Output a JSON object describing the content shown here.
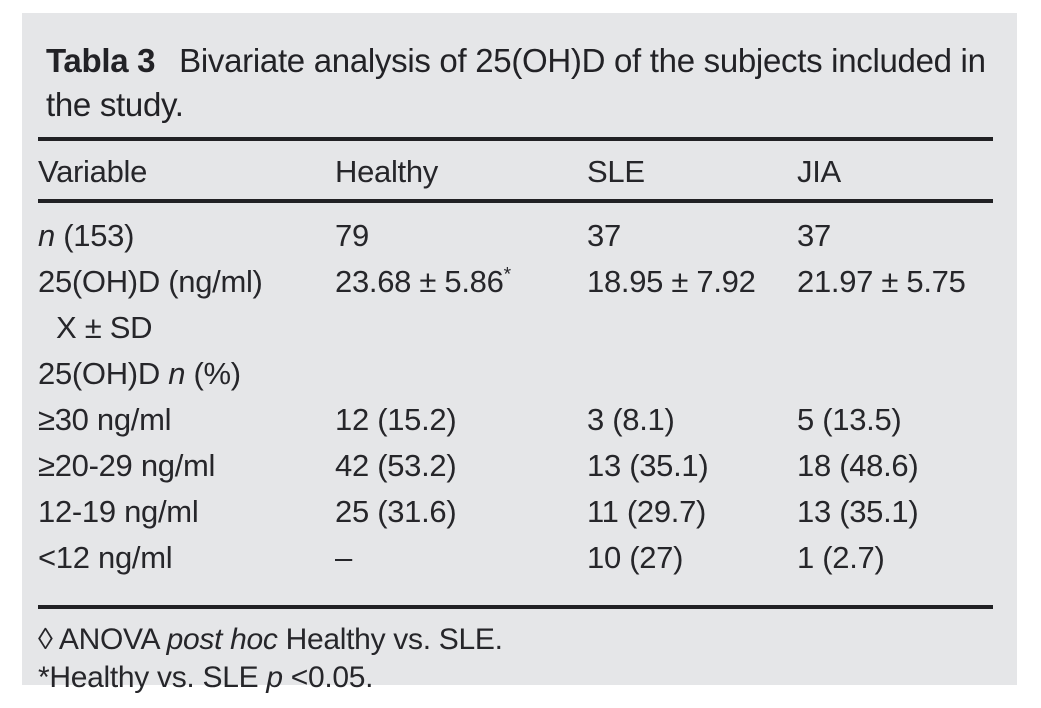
{
  "title": {
    "label": "Tabla 3",
    "text": "Bivariate analysis of 25(OH)D of the subjects included in the study."
  },
  "colors": {
    "panel_bg": "#e5e6e8",
    "text": "#26262a",
    "rule": "#212124"
  },
  "chart_data": {
    "type": "table",
    "title": "Tabla 3 Bivariate analysis of 25(OH)D of the subjects included in the study.",
    "columns": [
      "Variable",
      "Healthy",
      "SLE",
      "JIA"
    ],
    "rows": [
      {
        "cells": [
          [
            {
              "t": "n",
              "italic": true
            },
            {
              "t": " (153)"
            }
          ],
          "79",
          "37",
          "37"
        ]
      },
      {
        "cells": [
          "25(OH)D (ng/ml)",
          [
            {
              "t": "23.68 ± 5.86"
            },
            {
              "t": "*",
              "sup": true
            }
          ],
          "18.95 ± 7.92",
          "21.97 ± 5.75"
        ]
      },
      {
        "cells": [
          "X ± SD",
          "",
          "",
          ""
        ],
        "indent": true
      },
      {
        "cells": [
          [
            {
              "t": "25(OH)D "
            },
            {
              "t": "n",
              "italic": true
            },
            {
              "t": " (%)"
            }
          ],
          "",
          "",
          ""
        ]
      },
      {
        "cells": [
          "≥30 ng/ml",
          "12 (15.2)",
          "3 (8.1)",
          "5 (13.5)"
        ]
      },
      {
        "cells": [
          "≥20-29 ng/ml",
          "42 (53.2)",
          "13 (35.1)",
          "18 (48.6)"
        ]
      },
      {
        "cells": [
          "12-19 ng/ml",
          "25 (31.6)",
          "11 (29.7)",
          "13 (35.1)"
        ]
      },
      {
        "cells": [
          "<12 ng/ml",
          "–",
          "10 (27)",
          "1 (2.7)"
        ]
      }
    ],
    "footnotes": [
      [
        {
          "t": "◊ ANOVA "
        },
        {
          "t": "post hoc",
          "italic": true
        },
        {
          "t": " Healthy vs. SLE."
        }
      ],
      [
        {
          "t": "*Healthy vs. SLE "
        },
        {
          "t": "p",
          "italic": true
        },
        {
          "t": " <0.05."
        }
      ]
    ]
  }
}
